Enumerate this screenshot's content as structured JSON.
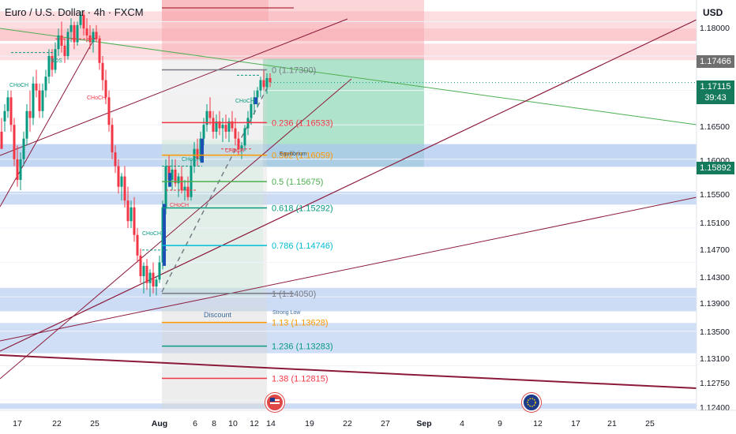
{
  "header": {
    "symbol_title": "Euro / U.S. Dollar · 4h · FXCM",
    "currency": "USD"
  },
  "price_axis": {
    "ticks": [
      "1.18000",
      "1.17466",
      "1.16500",
      "1.16000",
      "1.15892",
      "1.15500",
      "1.15100",
      "1.14700",
      "1.14300",
      "1.13900",
      "1.13500",
      "1.13100",
      "1.12750",
      "1.12400"
    ],
    "badges": [
      {
        "value": "1.17466",
        "color": "#6f6f6f"
      },
      {
        "value": "1.17115",
        "color": "#157a5b"
      },
      {
        "value": "1.15892",
        "color": "#157a5b"
      }
    ],
    "countdown": "39:43"
  },
  "time_axis": {
    "ticks": [
      {
        "label": "17",
        "bold": false
      },
      {
        "label": "22",
        "bold": false
      },
      {
        "label": "25",
        "bold": false
      },
      {
        "label": "Aug",
        "bold": true
      },
      {
        "label": "6",
        "bold": false
      },
      {
        "label": "8",
        "bold": false
      },
      {
        "label": "10",
        "bold": false
      },
      {
        "label": "12",
        "bold": false
      },
      {
        "label": "14",
        "bold": false
      },
      {
        "label": "19",
        "bold": false
      },
      {
        "label": "22",
        "bold": false
      },
      {
        "label": "27",
        "bold": false
      },
      {
        "label": "Sep",
        "bold": true
      },
      {
        "label": "4",
        "bold": false
      },
      {
        "label": "9",
        "bold": false
      },
      {
        "label": "12",
        "bold": false
      },
      {
        "label": "17",
        "bold": false
      },
      {
        "label": "21",
        "bold": false
      },
      {
        "label": "25",
        "bold": false
      }
    ]
  },
  "chart_data": {
    "type": "candlestick",
    "symbol": "EURUSD",
    "timeframe": "4h",
    "ylim": [
      1.1235,
      1.182
    ],
    "last_price": 1.17115,
    "fibonacci": [
      {
        "ratio": "0",
        "price": "1.17300",
        "color": "#787b86"
      },
      {
        "ratio": "0.236",
        "price": "1.16533",
        "color": "#f23645"
      },
      {
        "ratio": "0.382",
        "price": "1.16059",
        "color": "#ff9800"
      },
      {
        "ratio": "0.5",
        "price": "1.15675",
        "color": "#4caf50"
      },
      {
        "ratio": "0.618",
        "price": "1.15292",
        "color": "#089981"
      },
      {
        "ratio": "0.786",
        "price": "1.14746",
        "color": "#00bcd4"
      },
      {
        "ratio": "1",
        "price": "1.14050",
        "color": "#787b86"
      },
      {
        "ratio": "1.13",
        "price": "1.13628",
        "color": "#ff9800"
      },
      {
        "ratio": "1.236",
        "price": "1.13283",
        "color": "#089981"
      },
      {
        "ratio": "1.38",
        "price": "1.12815",
        "color": "#f23645"
      }
    ],
    "annotations": [
      "BOS",
      "CHoCH",
      "CHoCH",
      "CHoCH",
      "CHoCH",
      "CHoCH",
      "CHoCH",
      "CHoCH",
      "Equilibrium",
      "Discount",
      "Strong Low"
    ]
  },
  "colors": {
    "bull": "#089981",
    "bear": "#f23645",
    "supply_zone": "#f7a1a8",
    "demand_zone": "#aac4ee",
    "channel": "#8b1a3a",
    "trend_green": "#4caf50"
  }
}
